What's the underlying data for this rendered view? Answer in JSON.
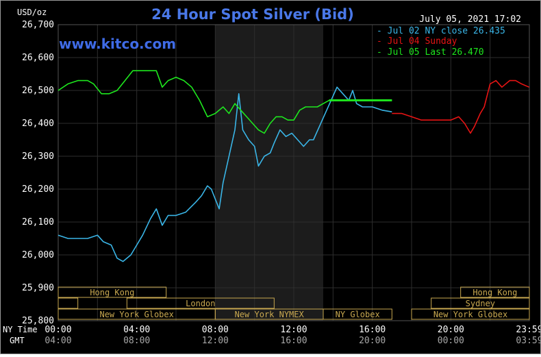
{
  "colors": {
    "background": "#000000",
    "grid": "#2e2e2e",
    "night_band": "#1c1c1c",
    "title": "#4a78e8",
    "text": "#ffffff",
    "text_dim": "#a7a7a7",
    "series_jul02": "#3ab6e8",
    "series_jul04": "#e81414",
    "series_jul05": "#1ee81e",
    "session_box": "#c8a850",
    "watermark": "#3f6be6"
  },
  "header": {
    "unit_label": "USD/oz",
    "title": "24 Hour Spot Silver (Bid)",
    "timestamp": "July 05, 2021 17:02",
    "watermark": "www.kitco.com"
  },
  "legend": {
    "items": [
      {
        "text": "- Jul 02 NY close 26.435",
        "color": "#3ab6e8"
      },
      {
        "text": "- Jul 04 Sunday",
        "color": "#e81414"
      },
      {
        "text": "- Jul 05 Last 26.470",
        "color": "#1ee81e"
      }
    ]
  },
  "axis": {
    "row_label_ny": "NY Time",
    "row_label_gmt": "GMT",
    "ny_ticks": [
      "00:00",
      "04:00",
      "08:00",
      "12:00",
      "16:00",
      "20:00",
      "23:59"
    ],
    "gmt_ticks": [
      "04:00",
      "08:00",
      "12:00",
      "16:00",
      "20:00",
      "00:00",
      "03:59"
    ],
    "y_ticks": [
      "26,700",
      "26,600",
      "26,500",
      "26,400",
      "26,300",
      "26,200",
      "26,100",
      "26,000",
      "25,900",
      "25,800"
    ]
  },
  "sessions": {
    "hong_kong_1": "Hong Kong",
    "london": "London",
    "ny_globex_1": "New York Globex",
    "ny_nymex": "New York NYMEX",
    "ny_globex_2": "NY Globex",
    "hong_kong_2": "Hong Kong",
    "sydney": "Sydney",
    "ny_globex_3": "New York Globex"
  },
  "chart_data": {
    "type": "line",
    "title": "24 Hour Spot Silver (Bid)",
    "ylabel": "USD/oz",
    "xlabel": "NY Time",
    "xlim_hours": [
      0,
      24
    ],
    "ylim": [
      25.8,
      26.7
    ],
    "grid": true,
    "legend_position": "top-right",
    "shaded_region_hours": [
      8.0,
      13.5
    ],
    "series": [
      {
        "name": "Jul 02 NY close 26.435",
        "color": "#3ab6e8",
        "points": [
          [
            0.0,
            26.06
          ],
          [
            0.5,
            26.05
          ],
          [
            1.0,
            26.05
          ],
          [
            1.5,
            26.05
          ],
          [
            2.0,
            26.06
          ],
          [
            2.3,
            26.04
          ],
          [
            2.7,
            26.03
          ],
          [
            3.0,
            25.99
          ],
          [
            3.3,
            25.98
          ],
          [
            3.7,
            26.0
          ],
          [
            4.0,
            26.03
          ],
          [
            4.3,
            26.06
          ],
          [
            4.7,
            26.11
          ],
          [
            5.0,
            26.14
          ],
          [
            5.3,
            26.09
          ],
          [
            5.6,
            26.12
          ],
          [
            6.0,
            26.12
          ],
          [
            6.5,
            26.13
          ],
          [
            7.0,
            26.16
          ],
          [
            7.3,
            26.18
          ],
          [
            7.6,
            26.21
          ],
          [
            7.8,
            26.2
          ],
          [
            8.0,
            26.17
          ],
          [
            8.2,
            26.14
          ],
          [
            8.4,
            26.22
          ],
          [
            8.7,
            26.3
          ],
          [
            9.0,
            26.38
          ],
          [
            9.2,
            26.49
          ],
          [
            9.4,
            26.38
          ],
          [
            9.7,
            26.35
          ],
          [
            10.0,
            26.33
          ],
          [
            10.2,
            26.27
          ],
          [
            10.5,
            26.3
          ],
          [
            10.8,
            26.31
          ],
          [
            11.0,
            26.34
          ],
          [
            11.3,
            26.38
          ],
          [
            11.6,
            26.36
          ],
          [
            11.9,
            26.37
          ],
          [
            12.2,
            26.35
          ],
          [
            12.5,
            26.33
          ],
          [
            12.8,
            26.35
          ],
          [
            13.0,
            26.35
          ],
          [
            13.3,
            26.39
          ],
          [
            13.6,
            26.43
          ],
          [
            13.9,
            26.47
          ],
          [
            14.2,
            26.51
          ],
          [
            14.5,
            26.49
          ],
          [
            14.8,
            26.47
          ],
          [
            15.0,
            26.5
          ],
          [
            15.2,
            26.46
          ],
          [
            15.5,
            26.45
          ],
          [
            16.0,
            26.45
          ],
          [
            16.5,
            26.44
          ],
          [
            17.0,
            26.435
          ]
        ]
      },
      {
        "name": "Jul 04 Sunday",
        "color": "#e81414",
        "points": [
          [
            17.0,
            26.43
          ],
          [
            17.5,
            26.43
          ],
          [
            18.0,
            26.42
          ],
          [
            18.5,
            26.41
          ],
          [
            19.0,
            26.41
          ],
          [
            19.5,
            26.41
          ],
          [
            20.0,
            26.41
          ],
          [
            20.4,
            26.42
          ],
          [
            20.7,
            26.4
          ],
          [
            21.0,
            26.37
          ],
          [
            21.2,
            26.39
          ],
          [
            21.5,
            26.43
          ],
          [
            21.7,
            26.45
          ],
          [
            22.0,
            26.52
          ],
          [
            22.3,
            26.53
          ],
          [
            22.6,
            26.51
          ],
          [
            23.0,
            26.53
          ],
          [
            23.3,
            26.53
          ],
          [
            23.6,
            26.52
          ],
          [
            23.99,
            26.51
          ]
        ]
      },
      {
        "name": "Jul 05 Last 26.470",
        "color": "#1ee81e",
        "points": [
          [
            0.0,
            26.5
          ],
          [
            0.5,
            26.52
          ],
          [
            1.0,
            26.53
          ],
          [
            1.5,
            26.53
          ],
          [
            1.8,
            26.52
          ],
          [
            2.2,
            26.49
          ],
          [
            2.6,
            26.49
          ],
          [
            3.0,
            26.5
          ],
          [
            3.4,
            26.53
          ],
          [
            3.8,
            26.56
          ],
          [
            4.2,
            26.56
          ],
          [
            4.6,
            26.56
          ],
          [
            5.0,
            26.56
          ],
          [
            5.3,
            26.51
          ],
          [
            5.6,
            26.53
          ],
          [
            6.0,
            26.54
          ],
          [
            6.4,
            26.53
          ],
          [
            6.8,
            26.51
          ],
          [
            7.2,
            26.47
          ],
          [
            7.6,
            26.42
          ],
          [
            8.0,
            26.43
          ],
          [
            8.4,
            26.45
          ],
          [
            8.7,
            26.43
          ],
          [
            9.0,
            26.46
          ],
          [
            9.3,
            26.44
          ],
          [
            9.6,
            26.42
          ],
          [
            9.9,
            26.4
          ],
          [
            10.2,
            26.38
          ],
          [
            10.5,
            26.37
          ],
          [
            10.8,
            26.4
          ],
          [
            11.1,
            26.42
          ],
          [
            11.4,
            26.42
          ],
          [
            11.7,
            26.41
          ],
          [
            12.0,
            26.41
          ],
          [
            12.3,
            26.44
          ],
          [
            12.6,
            26.45
          ],
          [
            12.9,
            26.45
          ],
          [
            13.2,
            26.45
          ],
          [
            13.5,
            26.46
          ],
          [
            13.8,
            26.47
          ],
          [
            14.5,
            26.47
          ],
          [
            15.5,
            26.47
          ],
          [
            16.5,
            26.47
          ],
          [
            17.0,
            26.47
          ]
        ]
      }
    ]
  }
}
